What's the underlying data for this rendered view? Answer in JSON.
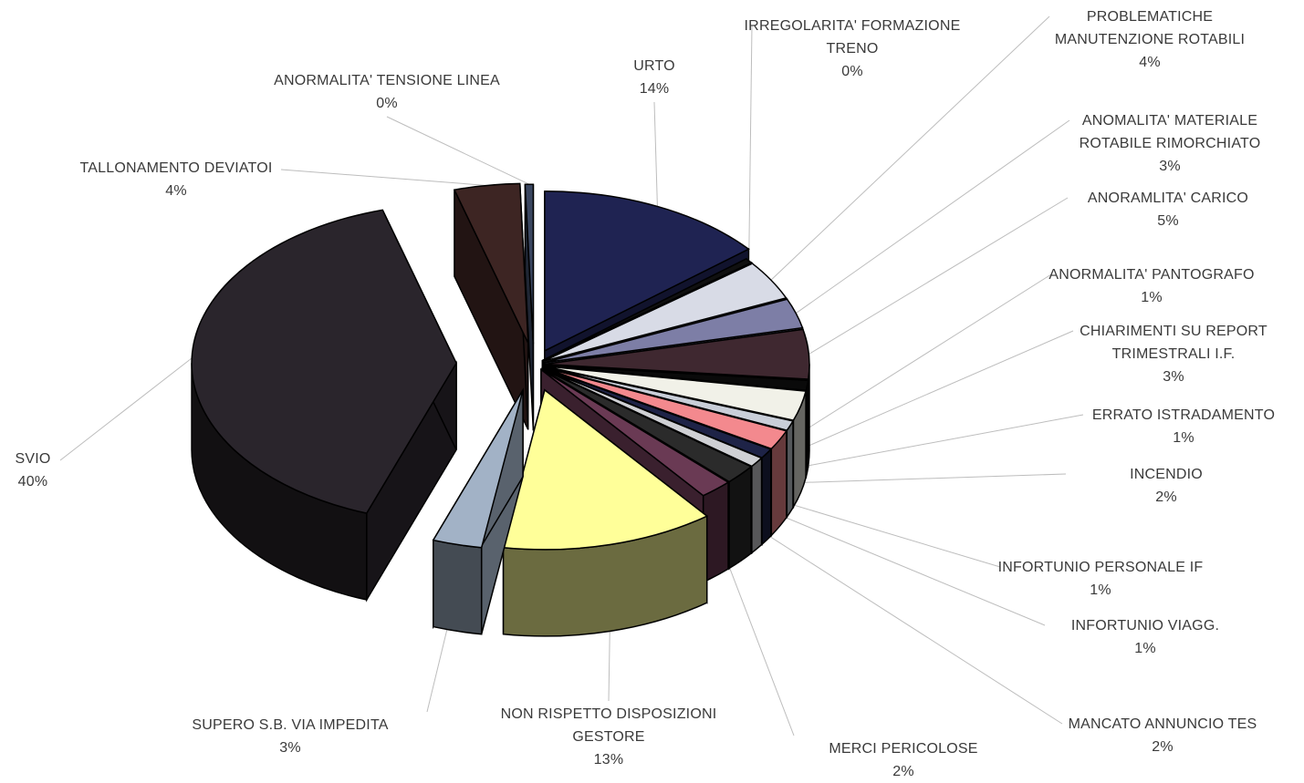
{
  "chart_data": {
    "type": "pie",
    "style": "3d-exploded",
    "title": "",
    "legend": "none",
    "slices": [
      {
        "name": "URTO",
        "value": 14,
        "label": "14%",
        "color": "#1f2352"
      },
      {
        "name": "IRREGOLARITA' FORMAZIONE TRENO",
        "value": 0,
        "label": "0%",
        "color": "#101010"
      },
      {
        "name": "PROBLEMATICHE MANUTENZIONE ROTABILI",
        "value": 4,
        "label": "4%",
        "color": "#d8dbe6"
      },
      {
        "name": "ANOMALITA' MATERIALE ROTABILE RIMORCHIATO",
        "value": 3,
        "label": "3%",
        "color": "#7d7ea6"
      },
      {
        "name": "ANORAMLITA' CARICO",
        "value": 5,
        "label": "5%",
        "color": "#3f2830"
      },
      {
        "name": "ANORMALITA' PANTOGRAFO",
        "value": 1,
        "label": "1%",
        "color": "#0a0a0a"
      },
      {
        "name": "CHIARIMENTI SU REPORT TRIMESTRALI I.F.",
        "value": 3,
        "label": "3%",
        "color": "#f1f1e8"
      },
      {
        "name": "ERRATO ISTRADAMENTO",
        "value": 1,
        "label": "1%",
        "color": "#c9ced8"
      },
      {
        "name": "INCENDIO",
        "value": 2,
        "label": "2%",
        "color": "#f3898e"
      },
      {
        "name": "INFORTUNIO PERSONALE IF",
        "value": 1,
        "label": "1%",
        "color": "#1e2347"
      },
      {
        "name": "INFORTUNIO VIAGG.",
        "value": 1,
        "label": "1%",
        "color": "#cfd0d4"
      },
      {
        "name": "MANCATO ANNUNCIO TES",
        "value": 2,
        "label": "2%",
        "color": "#2b2b2b"
      },
      {
        "name": "MERCI PERICOLOSE",
        "value": 2,
        "label": "2%",
        "color": "#6a3a54"
      },
      {
        "name": "NON RISPETTO DISPOSIZIONI GESTORE",
        "value": 13,
        "label": "13%",
        "color": "#ffff99"
      },
      {
        "name": "SUPERO S.B. VIA IMPEDITA",
        "value": 3,
        "label": "3%",
        "color": "#a2b2c6"
      },
      {
        "name": "SVIO",
        "value": 40,
        "label": "40%",
        "color": "#2a252c"
      },
      {
        "name": "TALLONAMENTO DEVIATOI",
        "value": 4,
        "label": "4%",
        "color": "#3d2523"
      },
      {
        "name": "ANORMALITA' TENSIONE LINEA",
        "value": 0,
        "label": "0%",
        "color": "#3a4660"
      }
    ],
    "labels": [
      {
        "lines": [
          "URTO",
          "14%"
        ]
      },
      {
        "lines": [
          "IRREGOLARITA' FORMAZIONE",
          "TRENO",
          "0%"
        ]
      },
      {
        "lines": [
          "PROBLEMATICHE",
          "MANUTENZIONE ROTABILI",
          "4%"
        ]
      },
      {
        "lines": [
          "ANOMALITA' MATERIALE",
          "ROTABILE RIMORCHIATO",
          "3%"
        ]
      },
      {
        "lines": [
          "ANORAMLITA' CARICO",
          "5%"
        ]
      },
      {
        "lines": [
          "ANORMALITA' PANTOGRAFO",
          "1%"
        ]
      },
      {
        "lines": [
          "CHIARIMENTI SU REPORT",
          "TRIMESTRALI I.F.",
          "3%"
        ]
      },
      {
        "lines": [
          "ERRATO ISTRADAMENTO",
          "1%"
        ]
      },
      {
        "lines": [
          "INCENDIO",
          "2%"
        ]
      },
      {
        "lines": [
          "INFORTUNIO PERSONALE IF",
          "1%"
        ]
      },
      {
        "lines": [
          "INFORTUNIO VIAGG.",
          "1%"
        ]
      },
      {
        "lines": [
          "MANCATO ANNUNCIO TES",
          "2%"
        ]
      },
      {
        "lines": [
          "MERCI PERICOLOSE",
          "2%"
        ]
      },
      {
        "lines": [
          "NON RISPETTO DISPOSIZIONI",
          "GESTORE",
          "13%"
        ]
      },
      {
        "lines": [
          "SUPERO S.B. VIA IMPEDITA",
          "3%"
        ]
      },
      {
        "lines": [
          "SVIO",
          "40%"
        ]
      },
      {
        "lines": [
          "TALLONAMENTO DEVIATOI",
          "4%"
        ]
      },
      {
        "lines": [
          "ANORMALITA' TENSIONE LINEA",
          "0%"
        ]
      }
    ]
  }
}
